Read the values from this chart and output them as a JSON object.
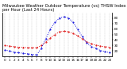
{
  "title": "Milwaukee Weather Outdoor Temperature (vs) THSW Index per Hour (Last 24 Hours)",
  "hours": [
    0,
    1,
    2,
    3,
    4,
    5,
    6,
    7,
    8,
    9,
    10,
    11,
    12,
    13,
    14,
    15,
    16,
    17,
    18,
    19,
    20,
    21,
    22,
    23
  ],
  "temp": [
    30,
    29,
    28,
    27,
    27,
    26,
    26,
    26,
    30,
    36,
    44,
    50,
    55,
    56,
    55,
    52,
    48,
    42,
    37,
    33,
    31,
    29,
    28,
    27
  ],
  "thsw": [
    22,
    20,
    18,
    17,
    16,
    15,
    14,
    13,
    25,
    42,
    60,
    72,
    80,
    82,
    80,
    72,
    60,
    46,
    35,
    28,
    25,
    21,
    19,
    17
  ],
  "temp_color": "#dd0000",
  "thsw_color": "#0000dd",
  "grid_color": "#888888",
  "bg_color": "#ffffff",
  "ylim": [
    10,
    90
  ],
  "yticks_right": [
    20,
    30,
    40,
    50,
    60,
    70,
    80
  ],
  "title_fontsize": 3.8,
  "tick_fontsize": 3.0,
  "linewidth": 0.7,
  "markersize": 1.0
}
